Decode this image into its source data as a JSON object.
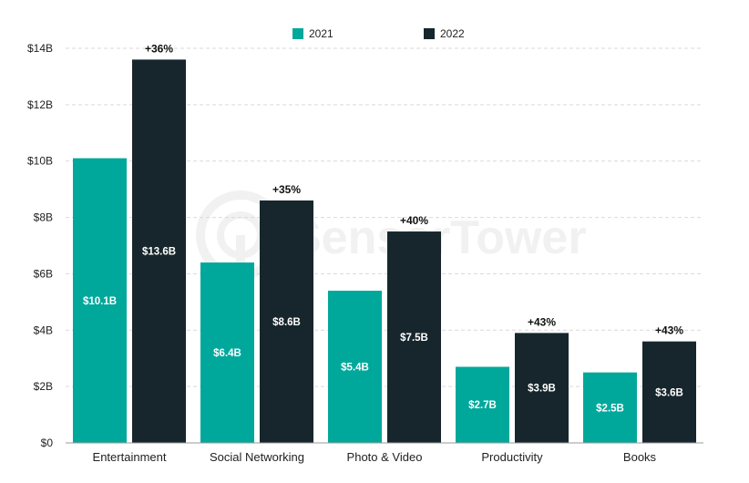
{
  "chart_data": {
    "type": "bar",
    "categories": [
      "Entertainment",
      "Social Networking",
      "Photo & Video",
      "Productivity",
      "Books"
    ],
    "series": [
      {
        "name": "2021",
        "color": "#00a89b",
        "values": [
          10.1,
          6.4,
          5.4,
          2.7,
          2.5
        ],
        "labels": [
          "$10.1B",
          "$6.4B",
          "$5.4B",
          "$2.7B",
          "$2.5B"
        ]
      },
      {
        "name": "2022",
        "color": "#16262c",
        "values": [
          13.6,
          8.6,
          7.5,
          3.9,
          3.6
        ],
        "labels": [
          "$13.6B",
          "$8.6B",
          "$7.5B",
          "$3.9B",
          "$3.6B"
        ]
      }
    ],
    "growth_labels": [
      "+36%",
      "+35%",
      "+40%",
      "+43%",
      "+43%"
    ],
    "ylim": [
      0,
      14
    ],
    "yticks": [
      0,
      2,
      4,
      6,
      8,
      10,
      12,
      14
    ],
    "ytick_labels": [
      "$0",
      "$2B",
      "$4B",
      "$6B",
      "$8B",
      "$10B",
      "$12B",
      "$14B"
    ],
    "grid": true,
    "legend_position": "top-center",
    "title": "",
    "xlabel": "",
    "ylabel": ""
  },
  "watermark_text": "SensorTower"
}
